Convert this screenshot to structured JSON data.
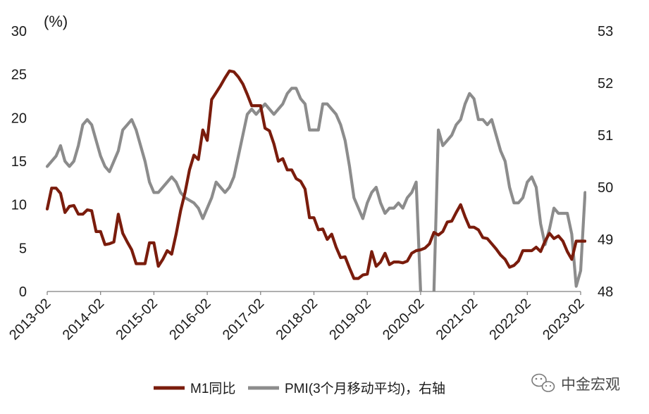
{
  "chart_data": {
    "type": "line",
    "unit_label": "(%)",
    "x_tick_labels": [
      "2013-02",
      "2014-02",
      "2015-02",
      "2016-02",
      "2017-02",
      "2018-02",
      "2019-02",
      "2020-02",
      "2021-02",
      "2022-02",
      "2023-02"
    ],
    "y_left": {
      "range": [
        0,
        30
      ],
      "ticks": [
        "0",
        "5",
        "10",
        "15",
        "20",
        "25",
        "30"
      ]
    },
    "y_right": {
      "range": [
        48,
        53
      ],
      "ticks": [
        "48",
        "49",
        "50",
        "51",
        "52",
        "53"
      ]
    },
    "grid": false,
    "legend_position": "bottom",
    "series": [
      {
        "name": "M1同比",
        "axis": "left",
        "color": "#7a1c0c",
        "points": [
          [
            "2013-02",
            9.5
          ],
          [
            "2013-03",
            11.9
          ],
          [
            "2013-04",
            11.9
          ],
          [
            "2013-05",
            11.3
          ],
          [
            "2013-06",
            9.1
          ],
          [
            "2013-07",
            9.8
          ],
          [
            "2013-08",
            9.9
          ],
          [
            "2013-09",
            8.9
          ],
          [
            "2013-10",
            8.9
          ],
          [
            "2013-11",
            9.4
          ],
          [
            "2013-12",
            9.3
          ],
          [
            "2014-01",
            6.9
          ],
          [
            "2014-02",
            6.9
          ],
          [
            "2014-03",
            5.4
          ],
          [
            "2014-04",
            5.5
          ],
          [
            "2014-05",
            5.7
          ],
          [
            "2014-06",
            8.9
          ],
          [
            "2014-07",
            6.7
          ],
          [
            "2014-08",
            5.7
          ],
          [
            "2014-09",
            4.8
          ],
          [
            "2014-10",
            3.2
          ],
          [
            "2014-11",
            3.2
          ],
          [
            "2014-12",
            3.2
          ],
          [
            "2015-01",
            5.6
          ],
          [
            "2015-02",
            5.6
          ],
          [
            "2015-03",
            2.9
          ],
          [
            "2015-04",
            3.7
          ],
          [
            "2015-05",
            4.7
          ],
          [
            "2015-06",
            4.3
          ],
          [
            "2015-07",
            6.6
          ],
          [
            "2015-08",
            9.3
          ],
          [
            "2015-09",
            11.4
          ],
          [
            "2015-10",
            14.0
          ],
          [
            "2015-11",
            15.7
          ],
          [
            "2015-12",
            15.2
          ],
          [
            "2016-01",
            18.6
          ],
          [
            "2016-02",
            17.4
          ],
          [
            "2016-03",
            22.1
          ],
          [
            "2016-04",
            22.9
          ],
          [
            "2016-05",
            23.7
          ],
          [
            "2016-06",
            24.6
          ],
          [
            "2016-07",
            25.4
          ],
          [
            "2016-08",
            25.3
          ],
          [
            "2016-09",
            24.7
          ],
          [
            "2016-10",
            23.9
          ],
          [
            "2016-11",
            22.7
          ],
          [
            "2016-12",
            21.4
          ],
          [
            "2017-01",
            21.4
          ],
          [
            "2017-02",
            21.4
          ],
          [
            "2017-03",
            18.8
          ],
          [
            "2017-04",
            18.5
          ],
          [
            "2017-05",
            17.0
          ],
          [
            "2017-06",
            15.0
          ],
          [
            "2017-07",
            15.3
          ],
          [
            "2017-08",
            14.0
          ],
          [
            "2017-09",
            14.0
          ],
          [
            "2017-10",
            13.0
          ],
          [
            "2017-11",
            12.7
          ],
          [
            "2017-12",
            11.8
          ],
          [
            "2018-01",
            8.5
          ],
          [
            "2018-02",
            8.5
          ],
          [
            "2018-03",
            7.1
          ],
          [
            "2018-04",
            7.2
          ],
          [
            "2018-05",
            6.0
          ],
          [
            "2018-06",
            6.6
          ],
          [
            "2018-07",
            5.1
          ],
          [
            "2018-08",
            3.9
          ],
          [
            "2018-09",
            4.0
          ],
          [
            "2018-10",
            2.7
          ],
          [
            "2018-11",
            1.5
          ],
          [
            "2018-12",
            1.5
          ],
          [
            "2019-01",
            1.9
          ],
          [
            "2019-02",
            2.0
          ],
          [
            "2019-03",
            4.6
          ],
          [
            "2019-04",
            2.9
          ],
          [
            "2019-05",
            3.4
          ],
          [
            "2019-06",
            4.4
          ],
          [
            "2019-07",
            3.1
          ],
          [
            "2019-08",
            3.4
          ],
          [
            "2019-09",
            3.4
          ],
          [
            "2019-10",
            3.3
          ],
          [
            "2019-11",
            3.5
          ],
          [
            "2019-12",
            4.4
          ],
          [
            "2020-01",
            4.7
          ],
          [
            "2020-02",
            4.8
          ],
          [
            "2020-03",
            5.0
          ],
          [
            "2020-04",
            5.5
          ],
          [
            "2020-05",
            6.8
          ],
          [
            "2020-06",
            6.5
          ],
          [
            "2020-07",
            6.9
          ],
          [
            "2020-08",
            8.0
          ],
          [
            "2020-09",
            8.1
          ],
          [
            "2020-10",
            9.1
          ],
          [
            "2020-11",
            10.0
          ],
          [
            "2020-12",
            8.6
          ],
          [
            "2021-01",
            7.4
          ],
          [
            "2021-02",
            7.4
          ],
          [
            "2021-03",
            7.1
          ],
          [
            "2021-04",
            6.2
          ],
          [
            "2021-05",
            6.1
          ],
          [
            "2021-06",
            5.5
          ],
          [
            "2021-07",
            4.9
          ],
          [
            "2021-08",
            4.2
          ],
          [
            "2021-09",
            3.7
          ],
          [
            "2021-10",
            2.8
          ],
          [
            "2021-11",
            3.0
          ],
          [
            "2021-12",
            3.5
          ],
          [
            "2022-01",
            4.7
          ],
          [
            "2022-02",
            4.7
          ],
          [
            "2022-03",
            4.7
          ],
          [
            "2022-04",
            5.1
          ],
          [
            "2022-05",
            4.6
          ],
          [
            "2022-06",
            5.8
          ],
          [
            "2022-07",
            6.7
          ],
          [
            "2022-08",
            6.1
          ],
          [
            "2022-09",
            6.4
          ],
          [
            "2022-10",
            5.8
          ],
          [
            "2022-11",
            4.6
          ],
          [
            "2022-12",
            3.7
          ],
          [
            "2023-01",
            5.8
          ],
          [
            "2023-02",
            5.8
          ],
          [
            "2023-03",
            5.8
          ]
        ]
      },
      {
        "name": "PMI(3个月移动平均)，右轴",
        "axis": "right",
        "color": "#8c8c8c",
        "points": [
          [
            "2013-02",
            50.4
          ],
          [
            "2013-03",
            50.5
          ],
          [
            "2013-04",
            50.6
          ],
          [
            "2013-05",
            50.8
          ],
          [
            "2013-06",
            50.5
          ],
          [
            "2013-07",
            50.4
          ],
          [
            "2013-08",
            50.5
          ],
          [
            "2013-09",
            50.8
          ],
          [
            "2013-10",
            51.2
          ],
          [
            "2013-11",
            51.3
          ],
          [
            "2013-12",
            51.2
          ],
          [
            "2014-01",
            50.9
          ],
          [
            "2014-02",
            50.6
          ],
          [
            "2014-03",
            50.4
          ],
          [
            "2014-04",
            50.3
          ],
          [
            "2014-05",
            50.5
          ],
          [
            "2014-06",
            50.7
          ],
          [
            "2014-07",
            51.1
          ],
          [
            "2014-08",
            51.2
          ],
          [
            "2014-09",
            51.3
          ],
          [
            "2014-10",
            51.1
          ],
          [
            "2014-11",
            50.8
          ],
          [
            "2014-12",
            50.5
          ],
          [
            "2015-01",
            50.1
          ],
          [
            "2015-02",
            49.9
          ],
          [
            "2015-03",
            49.9
          ],
          [
            "2015-04",
            50.0
          ],
          [
            "2015-05",
            50.1
          ],
          [
            "2015-06",
            50.2
          ],
          [
            "2015-07",
            50.1
          ],
          [
            "2015-08",
            49.9
          ],
          [
            "2015-09",
            49.8
          ],
          [
            "2015-10",
            49.75
          ],
          [
            "2015-11",
            49.7
          ],
          [
            "2015-12",
            49.6
          ],
          [
            "2016-01",
            49.4
          ],
          [
            "2016-02",
            49.6
          ],
          [
            "2016-03",
            49.8
          ],
          [
            "2016-04",
            50.1
          ],
          [
            "2016-05",
            50.0
          ],
          [
            "2016-06",
            49.9
          ],
          [
            "2016-07",
            50.0
          ],
          [
            "2016-08",
            50.2
          ],
          [
            "2016-09",
            50.6
          ],
          [
            "2016-10",
            51.0
          ],
          [
            "2016-11",
            51.4
          ],
          [
            "2016-12",
            51.5
          ],
          [
            "2017-01",
            51.4
          ],
          [
            "2017-02",
            51.5
          ],
          [
            "2017-03",
            51.6
          ],
          [
            "2017-04",
            51.5
          ],
          [
            "2017-05",
            51.4
          ],
          [
            "2017-06",
            51.5
          ],
          [
            "2017-07",
            51.6
          ],
          [
            "2017-08",
            51.8
          ],
          [
            "2017-09",
            51.9
          ],
          [
            "2017-10",
            51.9
          ],
          [
            "2017-11",
            51.7
          ],
          [
            "2017-12",
            51.6
          ],
          [
            "2018-01",
            51.1
          ],
          [
            "2018-02",
            51.1
          ],
          [
            "2018-03",
            51.1
          ],
          [
            "2018-04",
            51.6
          ],
          [
            "2018-05",
            51.6
          ],
          [
            "2018-06",
            51.5
          ],
          [
            "2018-07",
            51.4
          ],
          [
            "2018-08",
            51.2
          ],
          [
            "2018-09",
            50.9
          ],
          [
            "2018-10",
            50.4
          ],
          [
            "2018-11",
            49.8
          ],
          [
            "2018-12",
            49.6
          ],
          [
            "2019-01",
            49.4
          ],
          [
            "2019-02",
            49.7
          ],
          [
            "2019-03",
            49.9
          ],
          [
            "2019-04",
            50.0
          ],
          [
            "2019-05",
            49.7
          ],
          [
            "2019-06",
            49.5
          ],
          [
            "2019-07",
            49.6
          ],
          [
            "2019-08",
            49.6
          ],
          [
            "2019-09",
            49.7
          ],
          [
            "2019-10",
            49.6
          ],
          [
            "2019-11",
            49.8
          ],
          [
            "2019-12",
            49.9
          ],
          [
            "2020-01",
            50.1
          ],
          [
            "2020-02",
            48.0
          ],
          [
            "2020-03",
            47.5
          ],
          [
            "2020-04",
            47.3
          ],
          [
            "2020-05",
            48.0
          ],
          [
            "2020-06",
            51.1
          ],
          [
            "2020-07",
            50.8
          ],
          [
            "2020-08",
            50.9
          ],
          [
            "2020-09",
            51.0
          ],
          [
            "2020-10",
            51.2
          ],
          [
            "2020-11",
            51.3
          ],
          [
            "2020-12",
            51.6
          ],
          [
            "2021-01",
            51.8
          ],
          [
            "2021-02",
            51.7
          ],
          [
            "2021-03",
            51.3
          ],
          [
            "2021-04",
            51.3
          ],
          [
            "2021-05",
            51.2
          ],
          [
            "2021-06",
            51.3
          ],
          [
            "2021-07",
            51.0
          ],
          [
            "2021-08",
            50.7
          ],
          [
            "2021-09",
            50.5
          ],
          [
            "2021-10",
            50.0
          ],
          [
            "2021-11",
            49.7
          ],
          [
            "2021-12",
            49.7
          ],
          [
            "2022-01",
            49.8
          ],
          [
            "2022-02",
            50.1
          ],
          [
            "2022-03",
            50.2
          ],
          [
            "2022-04",
            50.0
          ],
          [
            "2022-05",
            49.3
          ],
          [
            "2022-06",
            48.9
          ],
          [
            "2022-07",
            49.2
          ],
          [
            "2022-08",
            49.6
          ],
          [
            "2022-09",
            49.5
          ],
          [
            "2022-10",
            49.5
          ],
          [
            "2022-11",
            49.5
          ],
          [
            "2022-12",
            49.1
          ],
          [
            "2023-01",
            48.1
          ],
          [
            "2023-02",
            48.4
          ],
          [
            "2023-03",
            49.9
          ]
        ]
      }
    ]
  },
  "watermark": {
    "text": "中金宏观",
    "icon": "wechat-icon"
  }
}
